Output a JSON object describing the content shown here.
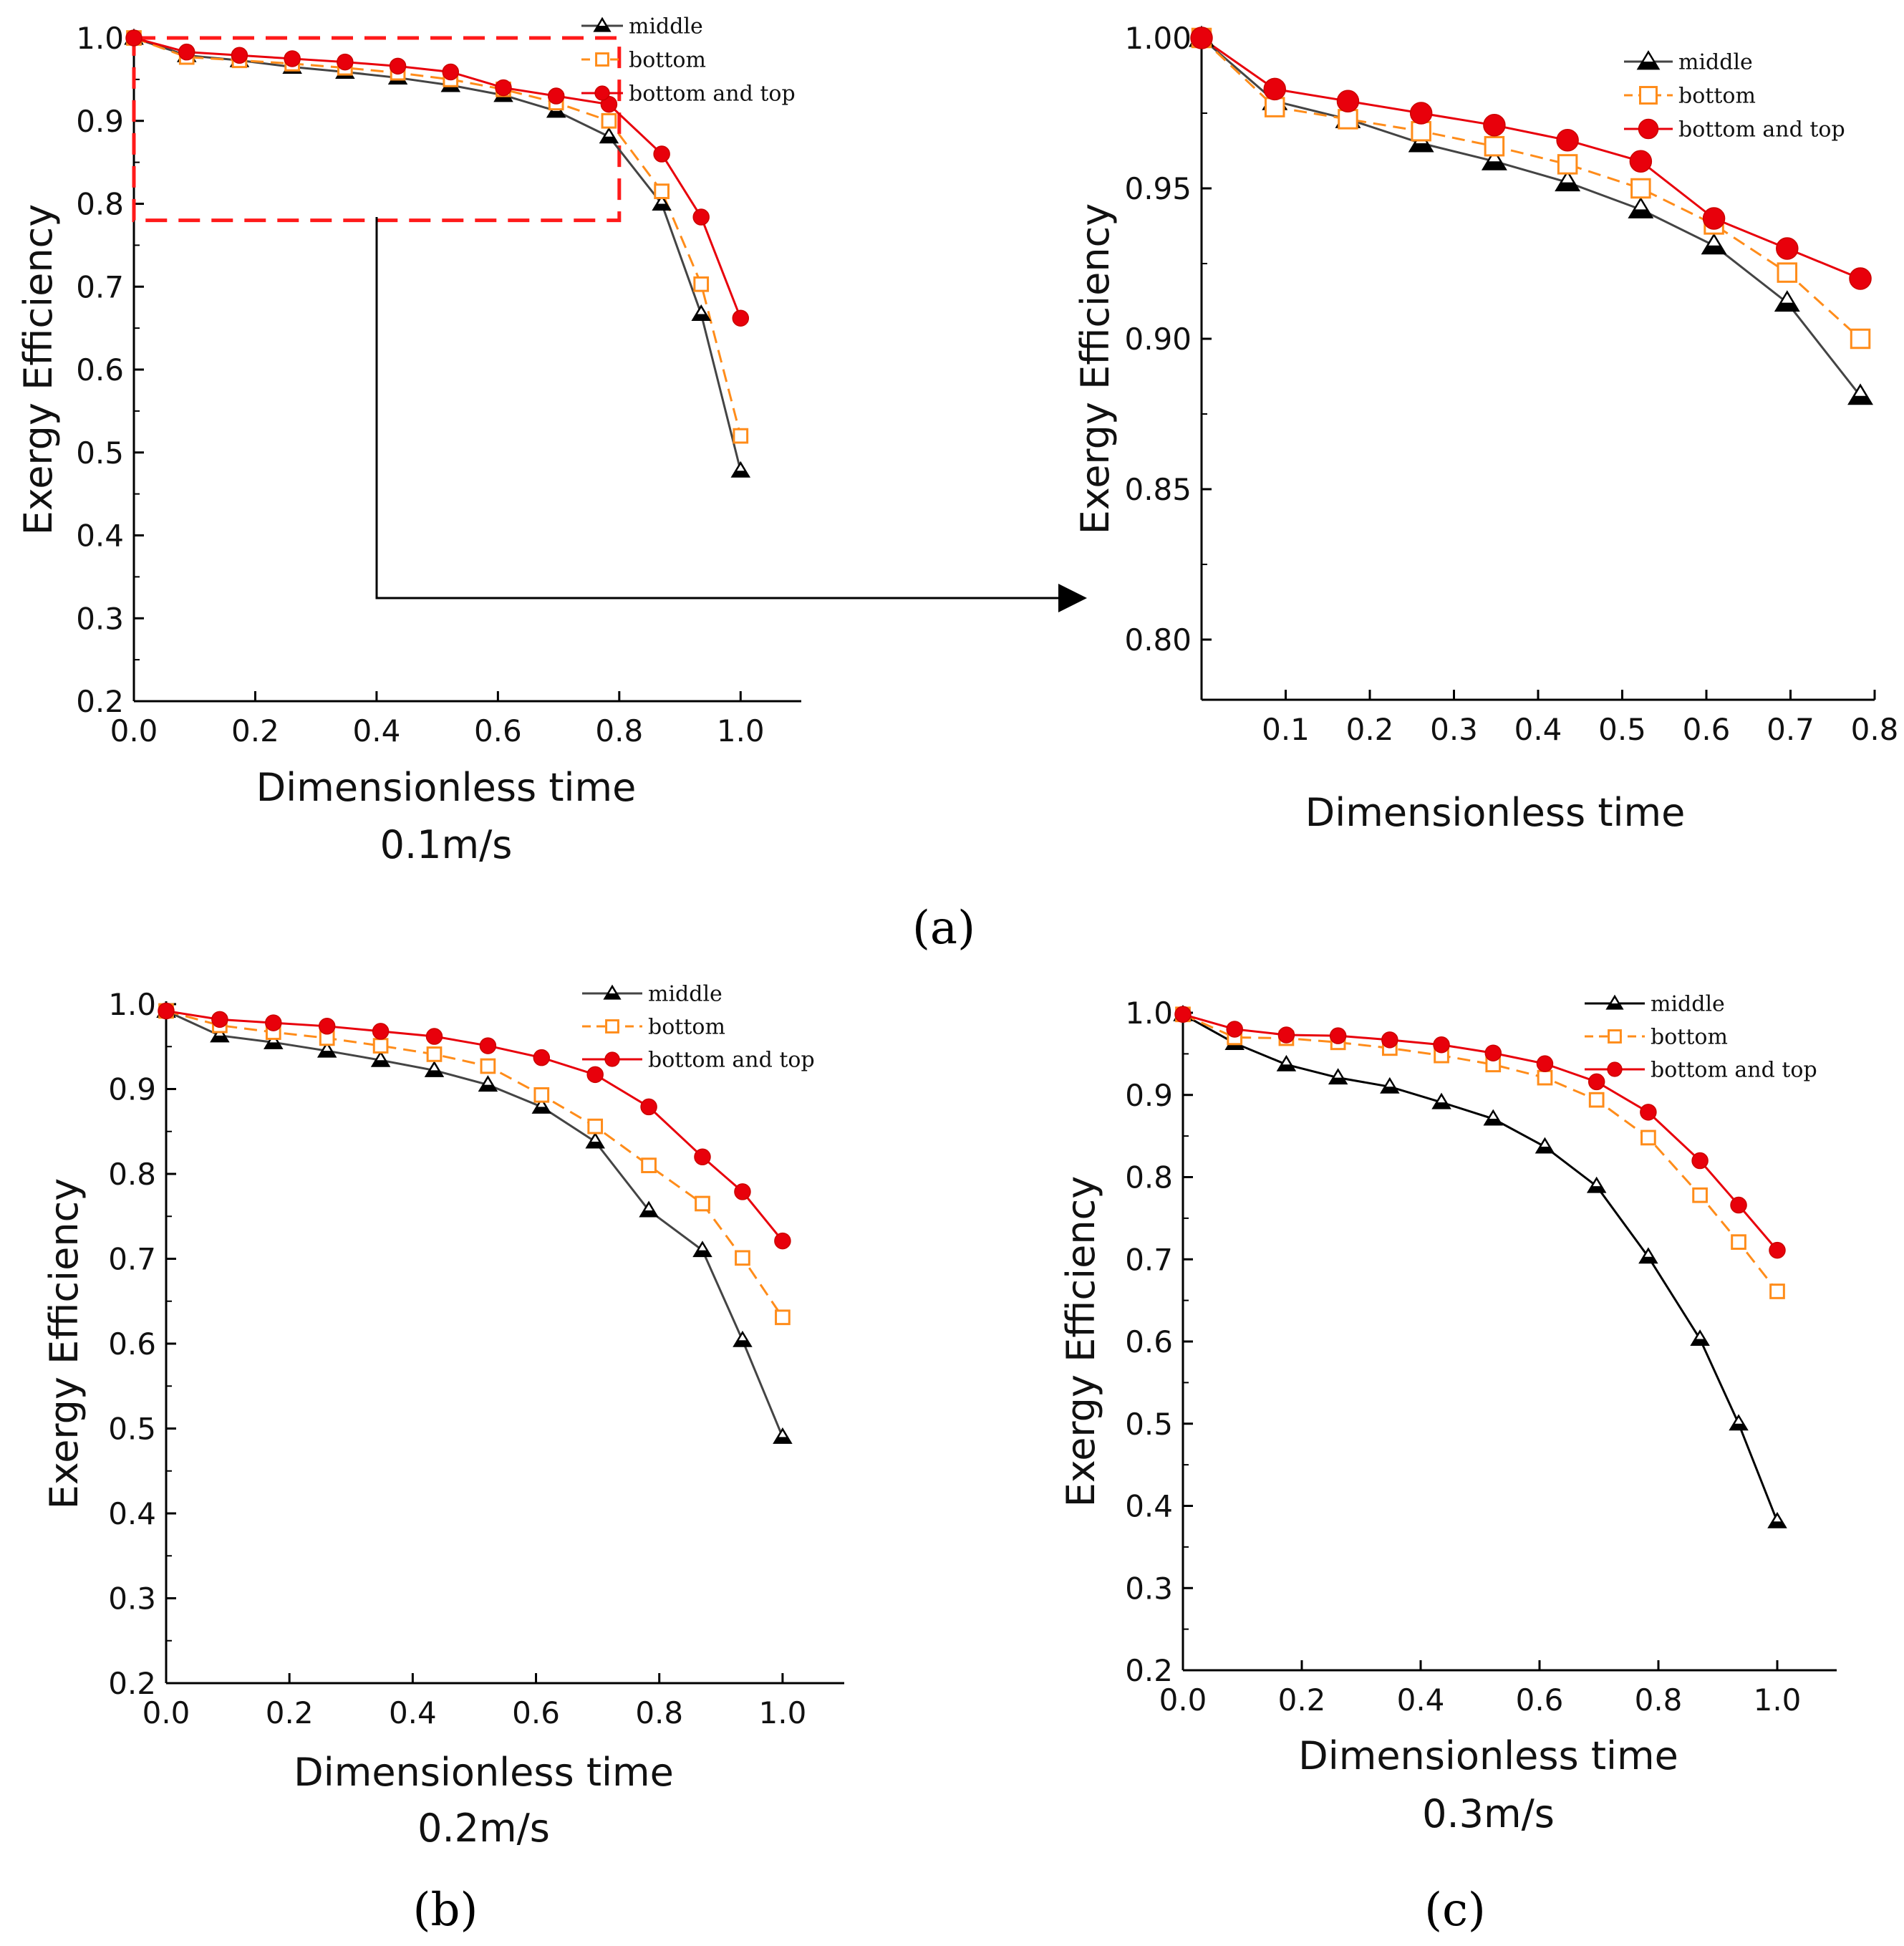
{
  "panel_labels": {
    "a": "(a)",
    "b": "(b)",
    "c": "(c)"
  },
  "chart_data": [
    {
      "id": "a_main",
      "type": "line",
      "xlabel": "Dimensionless time",
      "subtitle": "0.1m/s",
      "ylabel": "Exergy Efficiency",
      "xlim": [
        0,
        1.1
      ],
      "ylim": [
        0.2,
        1.0
      ],
      "xticks": [
        "0.0",
        "0.2",
        "0.4",
        "0.6",
        "0.8",
        "1.0"
      ],
      "yticks": [
        "0.2",
        "0.3",
        "0.4",
        "0.5",
        "0.6",
        "0.7",
        "0.8",
        "0.9",
        "1.0"
      ],
      "legend_position": "top-right",
      "zoom_box": {
        "x": [
          0.0,
          0.8
        ],
        "y": [
          0.78,
          1.0
        ]
      },
      "x": [
        0,
        0.087,
        0.174,
        0.261,
        0.348,
        0.435,
        0.522,
        0.609,
        0.696,
        0.783,
        0.87,
        0.935,
        1.0
      ],
      "series": [
        {
          "name": "middle",
          "color": "#444444",
          "marker": "triangle",
          "values": [
            1.0,
            0.979,
            0.973,
            0.965,
            0.959,
            0.952,
            0.943,
            0.931,
            0.912,
            0.881,
            0.8,
            0.667,
            0.478
          ]
        },
        {
          "name": "bottom",
          "color": "#FF8C1A",
          "marker": "square",
          "values": [
            1.0,
            0.977,
            0.973,
            0.969,
            0.964,
            0.958,
            0.95,
            0.938,
            0.922,
            0.9,
            0.815,
            0.703,
            0.52
          ]
        },
        {
          "name": "bottom and top",
          "color": "#E8000B",
          "marker": "circle",
          "values": [
            1.0,
            0.983,
            0.979,
            0.975,
            0.971,
            0.966,
            0.959,
            0.94,
            0.93,
            0.92,
            0.86,
            0.784,
            0.662
          ]
        }
      ]
    },
    {
      "id": "a_zoom",
      "type": "line",
      "xlabel": "Dimensionless time",
      "ylabel": "Exergy Efficiency",
      "xlim": [
        0,
        0.8
      ],
      "ylim": [
        0.78,
        1.0
      ],
      "xticks": [
        "0.1",
        "0.2",
        "0.3",
        "0.4",
        "0.5",
        "0.6",
        "0.7",
        "0.8"
      ],
      "yticks": [
        "0.80",
        "0.85",
        "0.90",
        "0.95",
        "1.00"
      ],
      "legend_position": "top-right",
      "x": [
        0,
        0.087,
        0.174,
        0.261,
        0.348,
        0.435,
        0.522,
        0.609,
        0.696,
        0.783
      ],
      "series": [
        {
          "name": "middle",
          "color": "#444444",
          "marker": "triangle",
          "values": [
            1.0,
            0.979,
            0.973,
            0.965,
            0.959,
            0.952,
            0.943,
            0.931,
            0.912,
            0.881
          ]
        },
        {
          "name": "bottom",
          "color": "#FF8C1A",
          "marker": "square",
          "values": [
            1.0,
            0.977,
            0.973,
            0.969,
            0.964,
            0.958,
            0.95,
            0.938,
            0.922,
            0.9
          ]
        },
        {
          "name": "bottom and top",
          "color": "#E8000B",
          "marker": "circle",
          "values": [
            1.0,
            0.983,
            0.979,
            0.975,
            0.971,
            0.966,
            0.959,
            0.94,
            0.93,
            0.92
          ]
        }
      ]
    },
    {
      "id": "b",
      "type": "line",
      "xlabel": "Dimensionless time",
      "subtitle": "0.2m/s",
      "ylabel": "Exergy Efficiency",
      "xlim": [
        0,
        1.1
      ],
      "ylim": [
        0.2,
        1.0
      ],
      "xticks": [
        "0.0",
        "0.2",
        "0.4",
        "0.6",
        "0.8",
        "1.0"
      ],
      "yticks": [
        "0.2",
        "0.3",
        "0.4",
        "0.5",
        "0.6",
        "0.7",
        "0.8",
        "0.9",
        "1.0"
      ],
      "legend_position": "top-right",
      "x": [
        0,
        0.087,
        0.174,
        0.261,
        0.348,
        0.435,
        0.522,
        0.609,
        0.696,
        0.783,
        0.87,
        0.935,
        1.0
      ],
      "series": [
        {
          "name": "middle",
          "color": "#444444",
          "marker": "triangle",
          "values": [
            0.992,
            0.963,
            0.955,
            0.945,
            0.934,
            0.922,
            0.905,
            0.879,
            0.838,
            0.757,
            0.71,
            0.604,
            0.49
          ]
        },
        {
          "name": "bottom",
          "color": "#FF8C1A",
          "marker": "square",
          "values": [
            0.992,
            0.975,
            0.967,
            0.96,
            0.951,
            0.941,
            0.927,
            0.893,
            0.856,
            0.81,
            0.765,
            0.701,
            0.631
          ]
        },
        {
          "name": "bottom and top",
          "color": "#E8000B",
          "marker": "circle",
          "values": [
            0.992,
            0.982,
            0.978,
            0.974,
            0.968,
            0.962,
            0.951,
            0.937,
            0.917,
            0.879,
            0.82,
            0.779,
            0.721
          ]
        }
      ]
    },
    {
      "id": "c",
      "type": "line",
      "xlabel": "Dimensionless time",
      "subtitle": "0.3m/s",
      "ylabel": "Exergy Efficiency",
      "xlim": [
        0,
        1.1
      ],
      "ylim": [
        0.2,
        1.0
      ],
      "xticks": [
        "0.0",
        "0.2",
        "0.4",
        "0.6",
        "0.8",
        "1.0"
      ],
      "yticks": [
        "0.2",
        "0.3",
        "0.4",
        "0.5",
        "0.6",
        "0.7",
        "0.8",
        "0.9",
        "1.0"
      ],
      "legend_position": "top-right",
      "x": [
        0,
        0.087,
        0.174,
        0.261,
        0.348,
        0.435,
        0.522,
        0.609,
        0.696,
        0.783,
        0.87,
        0.935,
        1.0
      ],
      "series": [
        {
          "name": "middle",
          "color": "#000000",
          "marker": "triangle",
          "values": [
            0.998,
            0.963,
            0.937,
            0.921,
            0.91,
            0.891,
            0.871,
            0.837,
            0.789,
            0.703,
            0.603,
            0.5,
            0.381
          ]
        },
        {
          "name": "bottom",
          "color": "#FF8C1A",
          "marker": "square",
          "values": [
            0.998,
            0.97,
            0.969,
            0.964,
            0.957,
            0.948,
            0.937,
            0.921,
            0.894,
            0.848,
            0.778,
            0.721,
            0.661
          ]
        },
        {
          "name": "bottom and top",
          "color": "#E8000B",
          "marker": "circle",
          "values": [
            0.998,
            0.98,
            0.973,
            0.972,
            0.967,
            0.961,
            0.951,
            0.938,
            0.916,
            0.879,
            0.82,
            0.766,
            0.711
          ]
        }
      ]
    }
  ]
}
